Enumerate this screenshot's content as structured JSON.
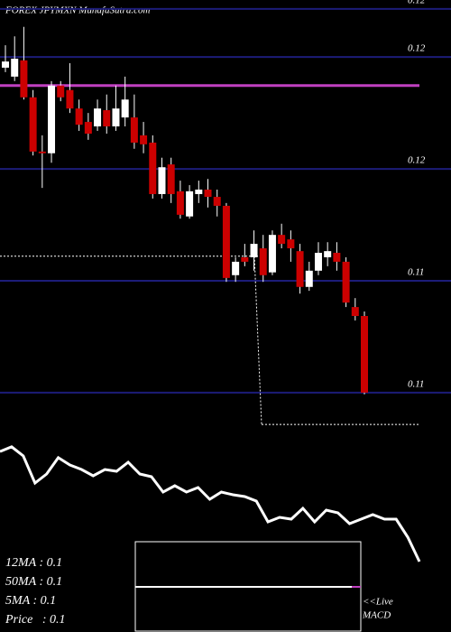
{
  "chart_data": {
    "type": "candlestick",
    "title": "FOREX JPYMXN MunafaSutra.com",
    "ylim": [
      0.11852,
      0.11061
    ],
    "yticks": [
      {
        "value": 0.11836,
        "label": "0.12"
      },
      {
        "value": 0.1175,
        "label": "0.12"
      },
      {
        "value": 0.1155,
        "label": "0.12"
      },
      {
        "value": 0.1135,
        "label": "0.11"
      },
      {
        "value": 0.1115,
        "label": "0.11"
      }
    ],
    "grid": true,
    "grid_color": "#1c1c78",
    "up_color": "#ffffff",
    "down_color": "#cc0000",
    "open": [
      0.11731,
      0.11715,
      0.11744,
      0.11678,
      0.11581,
      0.11578,
      0.11699,
      0.11691,
      0.11658,
      0.11634,
      0.11626,
      0.11655,
      0.11626,
      0.11642,
      0.11642,
      0.1161,
      0.11597,
      0.11505,
      0.11558,
      0.1151,
      0.11465,
      0.11505,
      0.11513,
      0.115,
      0.11484,
      0.1136,
      0.11392,
      0.11392,
      0.11408,
      0.11365,
      0.11432,
      0.11424,
      0.11403,
      0.11339,
      0.11368,
      0.11392,
      0.114,
      0.11384,
      0.11303,
      0.11287
    ],
    "high": [
      0.11771,
      0.11787,
      0.11804,
      0.11691,
      0.1161,
      0.11707,
      0.11707,
      0.11739,
      0.11674,
      0.1165,
      0.11674,
      0.11683,
      0.11699,
      0.11715,
      0.11683,
      0.11634,
      0.1161,
      0.1157,
      0.1157,
      0.11529,
      0.11521,
      0.11529,
      0.11532,
      0.11513,
      0.11489,
      0.11392,
      0.11416,
      0.1144,
      0.11432,
      0.1144,
      0.11452,
      0.1144,
      0.11416,
      0.11384,
      0.11419,
      0.11419,
      0.11419,
      0.11392,
      0.11319,
      0.11295
    ],
    "low": [
      0.11723,
      0.11707,
      0.11674,
      0.11574,
      0.11516,
      0.11561,
      0.11671,
      0.1165,
      0.11618,
      0.11602,
      0.11618,
      0.11613,
      0.11618,
      0.11626,
      0.11586,
      0.11578,
      0.11497,
      0.11497,
      0.11489,
      0.11461,
      0.11461,
      0.11489,
      0.11481,
      0.11465,
      0.11348,
      0.11348,
      0.11376,
      0.11368,
      0.11348,
      0.1136,
      0.11408,
      0.11384,
      0.11327,
      0.11332,
      0.1136,
      0.11376,
      0.11368,
      0.11303,
      0.11279,
      0.11147
    ],
    "close": [
      0.11742,
      0.11747,
      0.11678,
      0.11581,
      0.11578,
      0.11699,
      0.11678,
      0.11658,
      0.11629,
      0.11613,
      0.11658,
      0.11626,
      0.11658,
      0.11674,
      0.11597,
      0.11594,
      0.11505,
      0.11553,
      0.11505,
      0.11468,
      0.1151,
      0.11513,
      0.115,
      0.11484,
      0.11355,
      0.11384,
      0.11384,
      0.11416,
      0.1136,
      0.11432,
      0.11416,
      0.11408,
      0.11339,
      0.11368,
      0.114,
      0.11403,
      0.11384,
      0.11311,
      0.11287,
      0.1115
    ],
    "levels": [
      {
        "value": 0.11699,
        "color": "#c040c0",
        "style": "solid"
      },
      {
        "value": 0.11394,
        "color": "#ffffff",
        "style": "dotted"
      },
      {
        "value": 0.11093,
        "color": "#ffffff",
        "style": "dotted"
      }
    ],
    "indicator": {
      "ylim": [
        0,
        100
      ],
      "color": "#ffffff",
      "values": [
        93.3,
        96.7,
        90,
        70,
        76.7,
        88.7,
        83.3,
        80,
        75.3,
        80,
        78.7,
        85.3,
        76.7,
        74.7,
        63.3,
        68,
        63.3,
        66.7,
        58,
        63.3,
        61.3,
        60,
        56.7,
        41.3,
        44.7,
        43.3,
        51.3,
        41.3,
        50,
        48,
        40,
        43.3,
        46.7,
        43.3,
        43.3,
        30,
        12
      ]
    },
    "info": [
      "12MA : 0.1",
      "50MA : 0.1",
      "5MA : 0.1",
      "Price   : 0.1"
    ],
    "live": "<<Live",
    "macd": "MACD"
  }
}
